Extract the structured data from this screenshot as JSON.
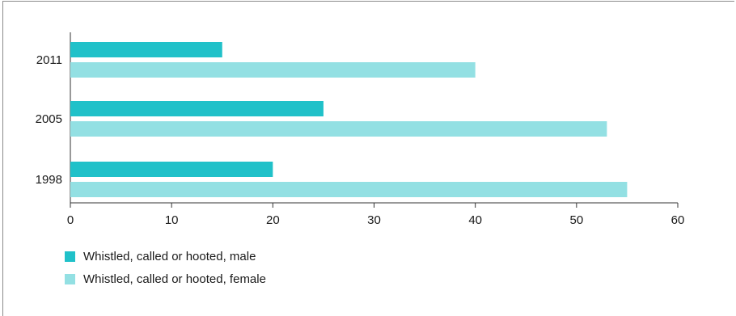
{
  "chart_data": {
    "type": "bar",
    "orientation": "horizontal",
    "categories": [
      "2011",
      "2005",
      "1998"
    ],
    "series": [
      {
        "name": "Whistled, called or hooted, male",
        "values": [
          15,
          25,
          20
        ],
        "color": "#20c1c9"
      },
      {
        "name": "Whistled, called or hooted, female",
        "values": [
          40,
          53,
          55
        ],
        "color": "#93e0e3"
      }
    ],
    "xlim": [
      0,
      60
    ],
    "xticks": [
      "0",
      "10",
      "20",
      "30",
      "40",
      "50",
      "60"
    ],
    "grid": false,
    "legend_position": "bottom-left"
  }
}
